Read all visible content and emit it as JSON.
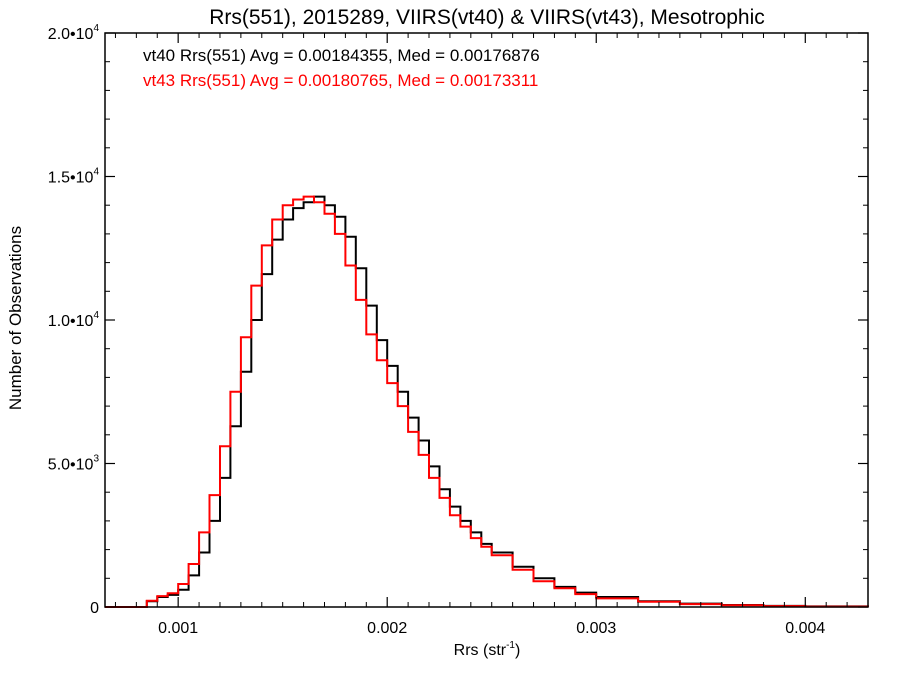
{
  "chart_data": {
    "type": "line",
    "title": "Rrs(551), 2015289, VIIRS(vt40) & VIIRS(vt43), Mesotrophic",
    "xlabel_main": "Rrs (str",
    "xlabel_sup": "-1",
    "xlabel_close": ")",
    "ylabel": "Number of Observations",
    "xlim": [
      0.00065,
      0.0043
    ],
    "ylim": [
      0,
      20000
    ],
    "xticks": [
      {
        "value": 0.001,
        "label": "0.001"
      },
      {
        "value": 0.002,
        "label": "0.002"
      },
      {
        "value": 0.003,
        "label": "0.003"
      },
      {
        "value": 0.004,
        "label": "0.004"
      }
    ],
    "yticks": [
      {
        "value": 0,
        "label": "0",
        "sup": ""
      },
      {
        "value": 5000,
        "label": "5.0•10",
        "sup": "3"
      },
      {
        "value": 10000,
        "label": "1.0•10",
        "sup": "4"
      },
      {
        "value": 15000,
        "label": "1.5•10",
        "sup": "4"
      },
      {
        "value": 20000,
        "label": "2.0•10",
        "sup": "4"
      }
    ],
    "annotations": [
      {
        "text": "vt40 Rrs(551) Avg = 0.00184355, Med = 0.00176876",
        "color": "#000000"
      },
      {
        "text": "vt43 Rrs(551) Avg = 0.00180765, Med = 0.00173311",
        "color": "#ff0000"
      }
    ],
    "series": [
      {
        "color": "#000000",
        "x": [
          0.00065,
          0.0008,
          0.00085,
          0.0009,
          0.00095,
          0.001,
          0.00105,
          0.0011,
          0.00115,
          0.0012,
          0.00125,
          0.0013,
          0.00135,
          0.0014,
          0.00145,
          0.0015,
          0.00155,
          0.0016,
          0.00165,
          0.0017,
          0.00175,
          0.0018,
          0.00185,
          0.0019,
          0.00195,
          0.002,
          0.00205,
          0.0021,
          0.00215,
          0.0022,
          0.00225,
          0.0023,
          0.00235,
          0.0024,
          0.00245,
          0.0025,
          0.0026,
          0.0027,
          0.0028,
          0.0029,
          0.003,
          0.0032,
          0.0034,
          0.0036,
          0.0038,
          0.004,
          0.0043
        ],
        "values": [
          0,
          0,
          200,
          350,
          420,
          600,
          1100,
          1900,
          3000,
          4500,
          6300,
          8200,
          10000,
          11600,
          12800,
          13500,
          13900,
          14100,
          14300,
          14000,
          13600,
          12900,
          11800,
          10500,
          9300,
          8400,
          7500,
          6600,
          5800,
          4900,
          4100,
          3500,
          3000,
          2600,
          2200,
          1900,
          1400,
          1000,
          700,
          500,
          350,
          200,
          120,
          70,
          40,
          20,
          0
        ]
      },
      {
        "color": "#ff0000",
        "x": [
          0.00065,
          0.0008,
          0.00085,
          0.0009,
          0.00095,
          0.001,
          0.00105,
          0.0011,
          0.00115,
          0.0012,
          0.00125,
          0.0013,
          0.00135,
          0.0014,
          0.00145,
          0.0015,
          0.00155,
          0.0016,
          0.00165,
          0.0017,
          0.00175,
          0.0018,
          0.00185,
          0.0019,
          0.00195,
          0.002,
          0.00205,
          0.0021,
          0.00215,
          0.0022,
          0.00225,
          0.0023,
          0.00235,
          0.0024,
          0.00245,
          0.0025,
          0.0026,
          0.0027,
          0.0028,
          0.0029,
          0.003,
          0.0032,
          0.0034,
          0.0036,
          0.0038,
          0.004,
          0.0043
        ],
        "values": [
          0,
          0,
          220,
          380,
          480,
          800,
          1500,
          2600,
          3900,
          5600,
          7500,
          9400,
          11200,
          12600,
          13500,
          14000,
          14200,
          14300,
          14100,
          13700,
          13000,
          11900,
          10700,
          9500,
          8600,
          7800,
          7000,
          6100,
          5300,
          4500,
          3800,
          3200,
          2800,
          2400,
          2100,
          1800,
          1300,
          900,
          650,
          450,
          300,
          180,
          100,
          60,
          30,
          15,
          0
        ]
      }
    ]
  }
}
